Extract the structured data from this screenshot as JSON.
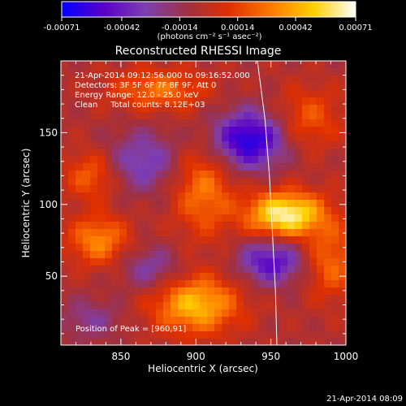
{
  "chart_data": {
    "type": "heatmap",
    "title": "Reconstructed RHESSI Image",
    "xlabel": "Heliocentric X (arcsec)",
    "ylabel": "Heliocentric Y (arcsec)",
    "xlim": [
      810,
      1000
    ],
    "ylim": [
      2,
      200
    ],
    "xticks": [
      850,
      900,
      950,
      1000
    ],
    "yticks": [
      50,
      100,
      150
    ],
    "colorbar": {
      "min": -0.00071,
      "max": 0.00071,
      "ticks": [
        "-0.00071",
        "-0.00042",
        "-0.00014",
        "0.00014",
        "0.00042",
        "0.00071"
      ],
      "unit_label": "(photons cm⁻² s⁻¹ asec⁻²)",
      "colormap": [
        "#0000ff",
        "#5a00c8",
        "#7e3fb0",
        "#a03040",
        "#e03000",
        "#ff7a00",
        "#ffd000",
        "#ffffff"
      ]
    },
    "info_lines": [
      "21-Apr-2014 09:12:56.000 to 09:16:52.000",
      "Detectors: 3F 5F 6F 7F 8F 9F, Att 0",
      "Energy Range: 12.0 - 25.0 keV",
      "Clean     Total counts: 8.12E+03"
    ],
    "peak_label": "Position of Peak = [960,91]",
    "peak": [
      960,
      91
    ],
    "timestamp": "21-Apr-2014 08:09",
    "blobs": [
      {
        "x": 960,
        "y": 93,
        "v": 0.00071,
        "sx": 18,
        "sy": 11
      },
      {
        "x": 900,
        "y": 30,
        "v": 0.00052,
        "sx": 20,
        "sy": 14
      },
      {
        "x": 835,
        "y": 75,
        "v": 0.00038,
        "sx": 14,
        "sy": 12
      },
      {
        "x": 830,
        "y": 120,
        "v": 0.00028,
        "sx": 12,
        "sy": 12
      },
      {
        "x": 905,
        "y": 110,
        "v": 0.00034,
        "sx": 14,
        "sy": 22
      },
      {
        "x": 875,
        "y": 180,
        "v": 0.00032,
        "sx": 22,
        "sy": 10
      },
      {
        "x": 975,
        "y": 160,
        "v": 0.00025,
        "sx": 15,
        "sy": 15
      },
      {
        "x": 990,
        "y": 60,
        "v": 0.0003,
        "sx": 12,
        "sy": 18
      },
      {
        "x": 935,
        "y": 145,
        "v": -0.0006,
        "sx": 17,
        "sy": 14
      },
      {
        "x": 950,
        "y": 60,
        "v": -0.00045,
        "sx": 15,
        "sy": 11
      },
      {
        "x": 865,
        "y": 130,
        "v": -0.0003,
        "sx": 17,
        "sy": 15
      },
      {
        "x": 870,
        "y": 55,
        "v": -0.00025,
        "sx": 14,
        "sy": 11
      },
      {
        "x": 830,
        "y": 20,
        "v": -0.0002,
        "sx": 14,
        "sy": 10
      }
    ],
    "limb": [
      [
        941,
        200
      ],
      [
        946,
        160
      ],
      [
        949,
        120
      ],
      [
        951,
        80
      ],
      [
        953,
        40
      ],
      [
        954,
        2
      ]
    ]
  }
}
